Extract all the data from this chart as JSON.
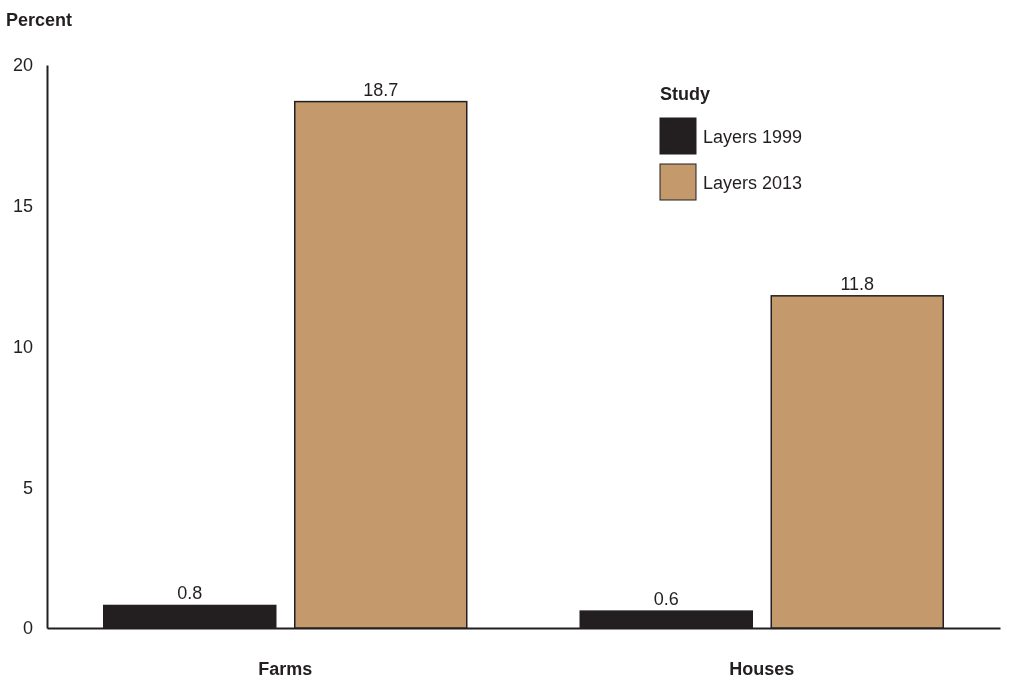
{
  "chart_data": {
    "type": "bar",
    "ylabel": "Percent",
    "legend_title": "Study",
    "categories": [
      "Farms",
      "Houses"
    ],
    "series": [
      {
        "name": "Layers 1999",
        "color": "#231f20",
        "values": [
          0.8,
          0.6
        ]
      },
      {
        "name": "Layers 2013",
        "color": "#c49a6c",
        "values": [
          18.7,
          11.8
        ]
      }
    ],
    "ylim": [
      0,
      20
    ],
    "yticks": [
      0,
      5,
      10,
      15,
      20
    ],
    "data_labels": true,
    "legend": "top right",
    "grid": false
  }
}
